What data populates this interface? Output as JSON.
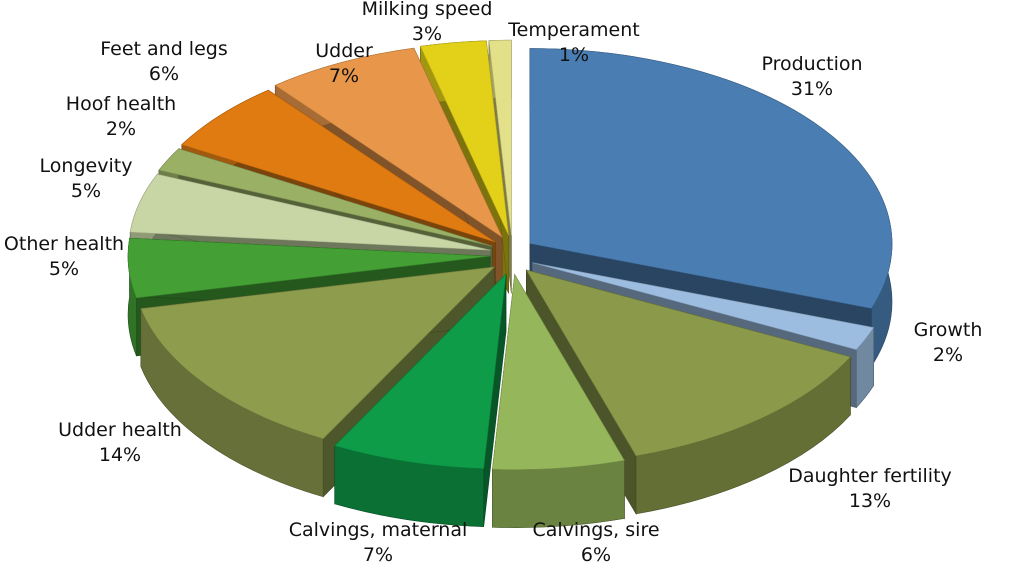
{
  "chart_data": {
    "type": "pie",
    "variant": "exploded-3d",
    "title": "",
    "categories": [
      "Production",
      "Growth",
      "Daughter fertility",
      "Calvings, sire",
      "Calvings, maternal",
      "Udder health",
      "Other health",
      "Longevity",
      "Hoof health",
      "Feet and legs",
      "Udder",
      "Milking speed",
      "Temperament"
    ],
    "values": [
      31,
      2,
      13,
      6,
      7,
      14,
      5,
      5,
      2,
      6,
      7,
      3,
      1
    ],
    "value_labels": [
      "31%",
      "2%",
      "13%",
      "6%",
      "7%",
      "14%",
      "5%",
      "5%",
      "2%",
      "6%",
      "7%",
      "3%",
      "1%"
    ],
    "colors": [
      "#4a7eb3",
      "#9dbde0",
      "#8b9a4a",
      "#95b65a",
      "#0e9c48",
      "#8e9c4e",
      "#44a035",
      "#c8d6a5",
      "#9ab065",
      "#e07b12",
      "#e8964a",
      "#e2d118",
      "#e3e08a"
    ],
    "legend": "none"
  }
}
